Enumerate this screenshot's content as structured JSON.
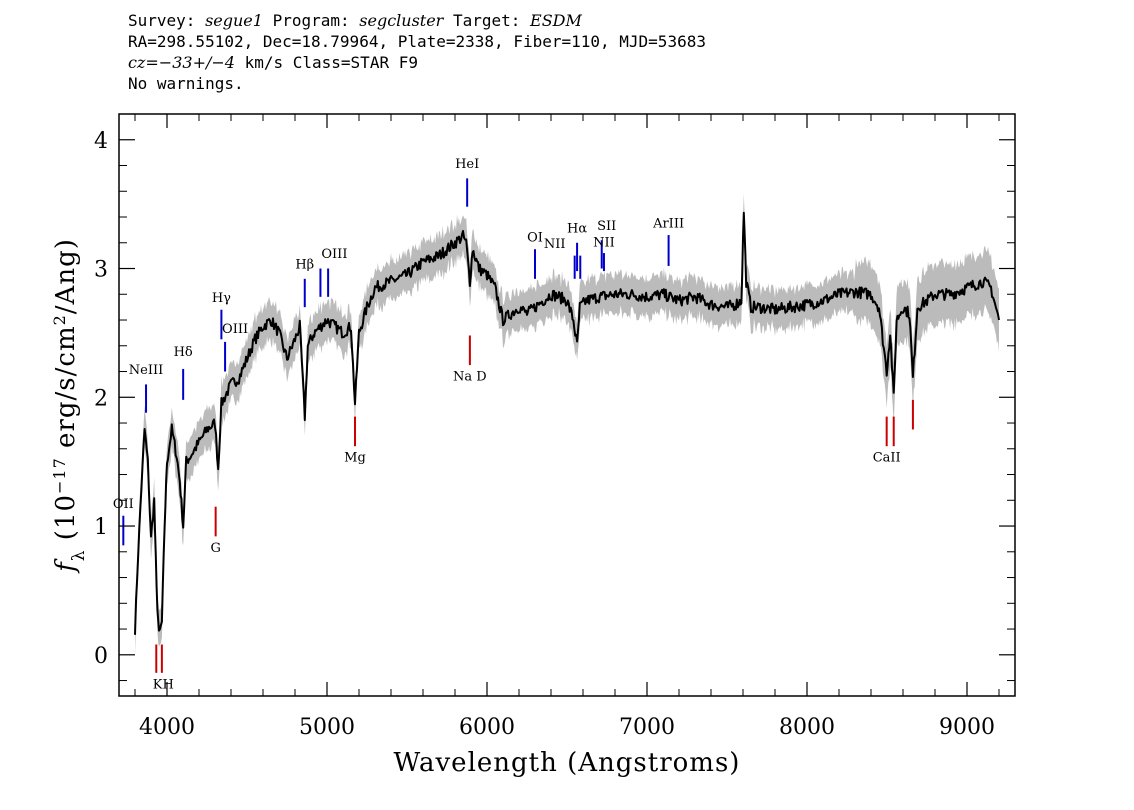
{
  "header": {
    "line1": [
      {
        "t": "Survey: ",
        "i": false
      },
      {
        "t": "segue1",
        "i": true
      },
      {
        "t": " Program: ",
        "i": false
      },
      {
        "t": "segcluster",
        "i": true
      },
      {
        "t": " Target: ",
        "i": false
      },
      {
        "t": "ESDM",
        "i": true
      }
    ],
    "line2": "RA=298.55102, Dec=18.79964, Plate=2338, Fiber=110, MJD=53683",
    "line3": [
      {
        "t": "cz=−33+/−4",
        "i": true
      },
      {
        "t": " km/s Class=STAR F9",
        "i": false
      }
    ],
    "line4": "No warnings."
  },
  "chart_data": {
    "type": "line",
    "xlabel": "Wavelength (Angstroms)",
    "ylabel": "f_λ (10^-17 erg/s/cm^2/Ang)",
    "xlim": [
      3700,
      9300
    ],
    "ylim": [
      -0.32,
      4.2
    ],
    "xticks": [
      4000,
      5000,
      6000,
      7000,
      8000,
      9000
    ],
    "yticks": [
      0,
      1,
      2,
      3,
      4
    ],
    "series": [
      {
        "x": [
          3800,
          3820,
          3840,
          3860,
          3880,
          3900,
          3920,
          3935,
          3950,
          3968,
          3985,
          4000,
          4030,
          4060,
          4080,
          4101,
          4120,
          4150,
          4200,
          4250,
          4300,
          4320,
          4340,
          4360,
          4380,
          4400,
          4450,
          4500,
          4550,
          4600,
          4650,
          4700,
          4750,
          4800,
          4830,
          4861,
          4880,
          4920,
          4960,
          5000,
          5050,
          5100,
          5150,
          5175,
          5200,
          5250,
          5300,
          5400,
          5500,
          5600,
          5700,
          5800,
          5850,
          5870,
          5893,
          5910,
          5950,
          6000,
          6050,
          6100,
          6150,
          6200,
          6250,
          6300,
          6350,
          6400,
          6450,
          6500,
          6540,
          6563,
          6580,
          6620,
          6700,
          6800,
          6900,
          7000,
          7100,
          7200,
          7300,
          7400,
          7500,
          7550,
          7590,
          7605,
          7620,
          7650,
          7700,
          7800,
          7900,
          8000,
          8100,
          8200,
          8300,
          8400,
          8450,
          8498,
          8520,
          8542,
          8560,
          8600,
          8640,
          8662,
          8690,
          8750,
          8800,
          8900,
          9000,
          9100,
          9150,
          9200
        ],
        "values": [
          0.2,
          0.8,
          1.3,
          1.75,
          1.5,
          0.9,
          1.2,
          0.5,
          0.15,
          0.25,
          1.0,
          1.5,
          1.75,
          1.55,
          1.35,
          1.0,
          1.5,
          1.55,
          1.65,
          1.75,
          1.8,
          1.45,
          1.95,
          2.0,
          2.05,
          2.1,
          2.15,
          2.3,
          2.45,
          2.55,
          2.6,
          2.5,
          2.3,
          2.45,
          2.55,
          1.85,
          2.4,
          2.5,
          2.55,
          2.6,
          2.55,
          2.5,
          2.55,
          1.95,
          2.5,
          2.7,
          2.85,
          2.9,
          2.95,
          3.05,
          3.1,
          3.2,
          3.25,
          3.2,
          2.9,
          3.15,
          3.0,
          2.95,
          2.85,
          2.6,
          2.65,
          2.7,
          2.65,
          2.7,
          2.75,
          2.8,
          2.78,
          2.75,
          2.6,
          2.4,
          2.7,
          2.75,
          2.78,
          2.8,
          2.8,
          2.78,
          2.8,
          2.75,
          2.78,
          2.72,
          2.7,
          2.72,
          2.75,
          3.45,
          2.9,
          2.7,
          2.7,
          2.68,
          2.7,
          2.72,
          2.75,
          2.8,
          2.82,
          2.8,
          2.7,
          2.2,
          2.5,
          2.0,
          2.6,
          2.7,
          2.65,
          2.15,
          2.7,
          2.75,
          2.8,
          2.8,
          2.85,
          2.9,
          2.85,
          2.6
        ]
      }
    ],
    "lines": [
      {
        "label": "NeIII",
        "x": 3869,
        "color": "#0000cc",
        "y0": 1.88,
        "y1": 2.1,
        "label_y": 2.18,
        "label_dx": 0
      },
      {
        "label": "OII",
        "x": 3727,
        "color": "#0000cc",
        "y0": 0.85,
        "y1": 1.08,
        "label_y": 1.14,
        "label_dx": 0
      },
      {
        "label": "Hδ",
        "x": 4101,
        "color": "#0000cc",
        "y0": 1.98,
        "y1": 2.22,
        "label_y": 2.32,
        "label_dx": 0
      },
      {
        "label": "Hγ",
        "x": 4340,
        "color": "#0000cc",
        "y0": 2.45,
        "y1": 2.68,
        "label_y": 2.74,
        "label_dx": 0
      },
      {
        "label": "OIII",
        "x": 4363,
        "color": "#0000cc",
        "y0": 2.2,
        "y1": 2.43,
        "label_y": 2.5,
        "label_dx": 10
      },
      {
        "label": "Hβ",
        "x": 4861,
        "color": "#0000cc",
        "y0": 2.7,
        "y1": 2.92,
        "label_y": 3.0,
        "label_dx": 0
      },
      {
        "label": "OIII",
        "x": 4959,
        "color": "#0000cc",
        "y0": 2.78,
        "y1": 3.0,
        "label_y": 3.08,
        "label_dx": 14
      },
      {
        "label": "OIII",
        "x": 5007,
        "color": "#0000cc",
        "y0": 2.78,
        "y1": 3.0,
        "label_y": null,
        "label_dx": 0
      },
      {
        "label": "HeI",
        "x": 5876,
        "color": "#0000cc",
        "y0": 3.48,
        "y1": 3.7,
        "label_y": 3.78,
        "label_dx": 0
      },
      {
        "label": "OI",
        "x": 6300,
        "color": "#0000cc",
        "y0": 2.92,
        "y1": 3.15,
        "label_y": 3.21,
        "label_dx": 0
      },
      {
        "label": "NII",
        "x": 6548,
        "color": "#0000cc",
        "y0": 2.92,
        "y1": 3.1,
        "label_y": 3.16,
        "label_dx": -20
      },
      {
        "label": "Hα",
        "x": 6563,
        "color": "#0000cc",
        "y0": 2.98,
        "y1": 3.2,
        "label_y": 3.28,
        "label_dx": 0
      },
      {
        "label": "NII",
        "x": 6583,
        "color": "#0000cc",
        "y0": 2.92,
        "y1": 3.1,
        "label_y": null,
        "label_dx": 0
      },
      {
        "label": "SII",
        "x": 6717,
        "color": "#0000cc",
        "y0": 3.0,
        "y1": 3.22,
        "label_y": 3.3,
        "label_dx": 5
      },
      {
        "label": "NII",
        "x": 6731,
        "color": "#0000cc",
        "y0": 2.98,
        "y1": 3.12,
        "label_y": 3.17,
        "label_dx": 0
      },
      {
        "label": "ArIII",
        "x": 7135,
        "color": "#0000cc",
        "y0": 3.02,
        "y1": 3.26,
        "label_y": 3.32,
        "label_dx": 0
      },
      {
        "label": "KH",
        "x": 3933,
        "color": "#cc0000",
        "y0": -0.14,
        "y1": 0.08,
        "label_y": -0.26,
        "label_dx": 7
      },
      {
        "label": "KH",
        "x": 3968,
        "color": "#cc0000",
        "y0": -0.14,
        "y1": 0.08,
        "label_y": null,
        "label_dx": 0
      },
      {
        "label": "G",
        "x": 4304,
        "color": "#cc0000",
        "y0": 0.92,
        "y1": 1.15,
        "label_y": 0.8,
        "label_dx": 0
      },
      {
        "label": "Mg",
        "x": 5175,
        "color": "#cc0000",
        "y0": 1.62,
        "y1": 1.85,
        "label_y": 1.5,
        "label_dx": 0
      },
      {
        "label": "Na D",
        "x": 5893,
        "color": "#cc0000",
        "y0": 2.25,
        "y1": 2.48,
        "label_y": 2.13,
        "label_dx": 0
      },
      {
        "label": "CaII",
        "x": 8498,
        "color": "#cc0000",
        "y0": 1.62,
        "y1": 1.85,
        "label_y": 1.5,
        "label_dx": 0
      },
      {
        "label": "CaII",
        "x": 8542,
        "color": "#cc0000",
        "y0": 1.62,
        "y1": 1.85,
        "label_y": null,
        "label_dx": 0
      },
      {
        "label": "CaII",
        "x": 8662,
        "color": "#cc0000",
        "y0": 1.75,
        "y1": 1.98,
        "label_y": null,
        "label_dx": 0
      }
    ],
    "colors": {
      "spectrum": "#000000",
      "error_band": "#bbbbbb",
      "emission": "#0000cc",
      "absorption": "#cc0000"
    },
    "grid": false,
    "legend": "none"
  }
}
